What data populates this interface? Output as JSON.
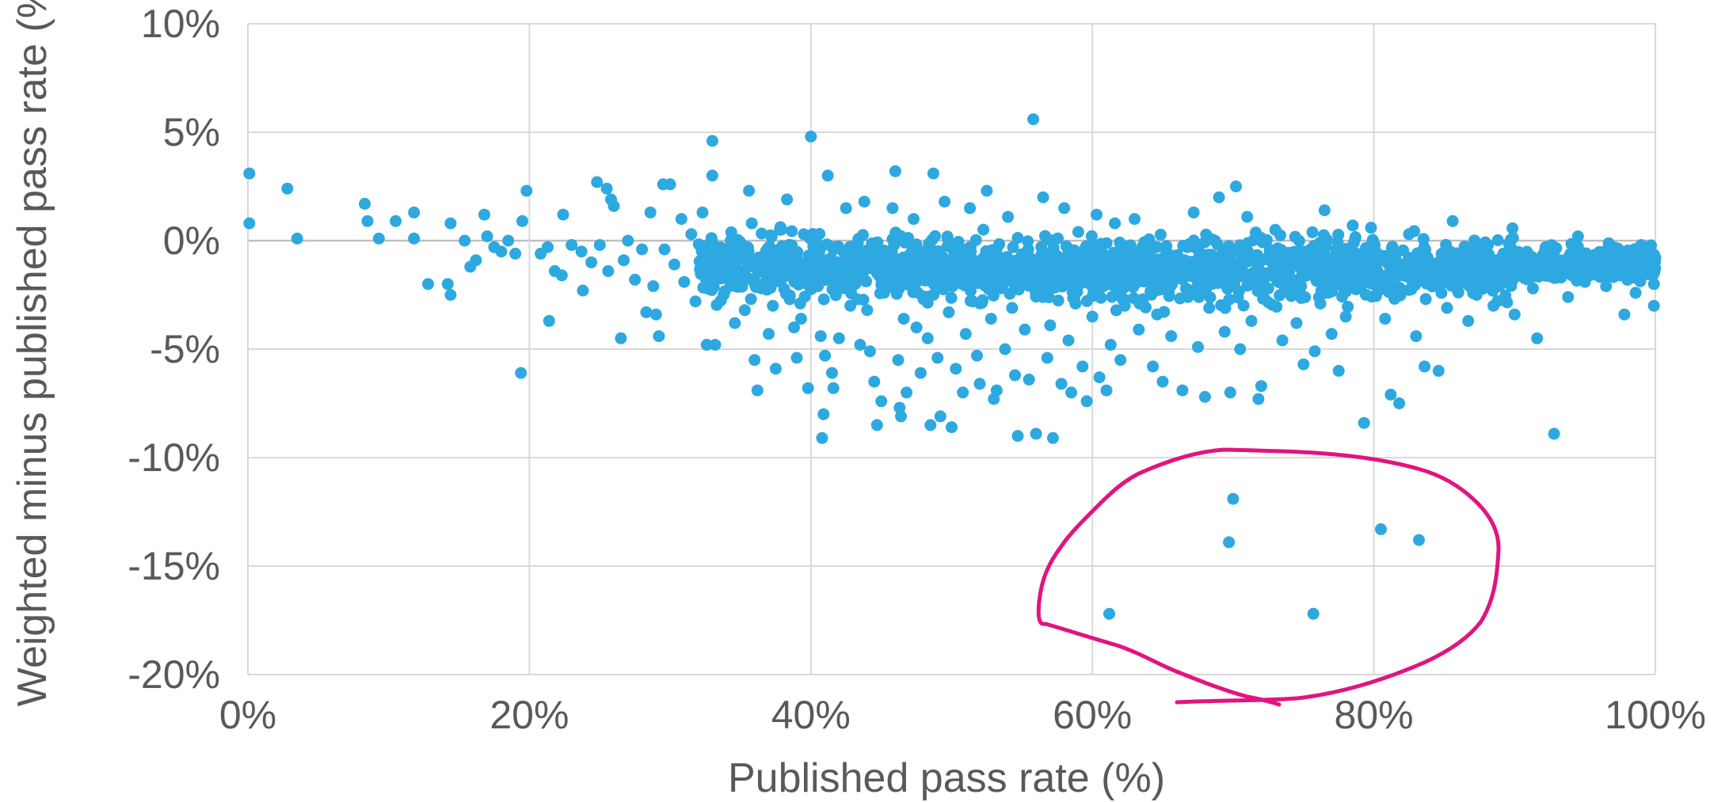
{
  "chart_data": {
    "type": "scatter",
    "xlabel": "Published pass rate (%)",
    "ylabel": "Weighted minus published pass rate (%)",
    "xlim": [
      0,
      100
    ],
    "ylim": [
      -20,
      10
    ],
    "x_ticks": [
      0,
      20,
      40,
      60,
      80,
      100
    ],
    "y_ticks": [
      10,
      5,
      0,
      -5,
      -10,
      -15,
      -20
    ],
    "x_tick_labels": [
      "0%",
      "20%",
      "40%",
      "60%",
      "80%",
      "100%"
    ],
    "y_tick_labels": [
      "10%",
      "5%",
      "0%",
      "-5%",
      "-10%",
      "-15%",
      "-20%"
    ],
    "grid": true,
    "legend": "none",
    "colors": {
      "points": "#2EA8E0",
      "annotation": "#E0157F"
    },
    "annotation": {
      "shape": "hand-drawn circle",
      "encloses": "outlier points at roughly -12% to -17%"
    },
    "series": [
      {
        "values": [
          [
            0.1,
            3.1
          ],
          [
            0.1,
            0.8
          ],
          [
            2.8,
            2.4
          ],
          [
            3.5,
            0.1
          ],
          [
            8.3,
            1.7
          ],
          [
            8.5,
            0.9
          ],
          [
            9.3,
            0.1
          ],
          [
            10.5,
            0.9
          ],
          [
            11.8,
            1.3
          ],
          [
            11.8,
            0.1
          ],
          [
            12.8,
            -2.0
          ],
          [
            14.2,
            -2.0
          ],
          [
            14.4,
            -2.5
          ],
          [
            14.4,
            0.8
          ],
          [
            15.4,
            0.0
          ],
          [
            15.8,
            -1.2
          ],
          [
            16.2,
            -0.9
          ],
          [
            16.8,
            1.2
          ],
          [
            17.0,
            0.2
          ],
          [
            17.5,
            -0.3
          ],
          [
            18.0,
            -0.5
          ],
          [
            18.5,
            0.0
          ],
          [
            19.0,
            -0.6
          ],
          [
            19.4,
            -6.1
          ],
          [
            19.5,
            0.9
          ],
          [
            19.8,
            2.3
          ],
          [
            20.8,
            -0.6
          ],
          [
            21.3,
            -0.3
          ],
          [
            21.4,
            -3.7
          ],
          [
            21.8,
            -1.4
          ],
          [
            22.3,
            -1.6
          ],
          [
            22.4,
            1.2
          ],
          [
            23.0,
            -0.2
          ],
          [
            23.7,
            -0.5
          ],
          [
            23.8,
            -2.3
          ],
          [
            24.4,
            -1.0
          ],
          [
            24.8,
            2.7
          ],
          [
            25.0,
            -0.2
          ],
          [
            25.5,
            2.4
          ],
          [
            25.6,
            -1.4
          ],
          [
            25.8,
            1.9
          ],
          [
            26.0,
            1.6
          ],
          [
            26.5,
            -4.5
          ],
          [
            26.7,
            -0.9
          ],
          [
            27.0,
            0.0
          ],
          [
            27.5,
            -1.8
          ],
          [
            28.0,
            -0.4
          ],
          [
            28.3,
            -3.3
          ],
          [
            28.6,
            1.3
          ],
          [
            28.8,
            -2.1
          ],
          [
            29.0,
            -3.4
          ],
          [
            29.2,
            -4.4
          ],
          [
            29.5,
            2.6
          ],
          [
            29.6,
            -0.4
          ],
          [
            30.0,
            2.6
          ],
          [
            30.3,
            -1.1
          ],
          [
            30.8,
            1.0
          ],
          [
            31.0,
            -1.9
          ],
          [
            31.5,
            0.3
          ],
          [
            31.8,
            -2.8
          ],
          [
            32.3,
            1.3
          ],
          [
            32.6,
            -4.8
          ],
          [
            32.8,
            -2.0
          ],
          [
            33.0,
            3.0
          ],
          [
            33.0,
            4.6
          ],
          [
            33.2,
            -4.8
          ],
          [
            33.4,
            -1.0
          ],
          [
            33.8,
            -2.5
          ],
          [
            34.3,
            0.0
          ],
          [
            34.6,
            -3.8
          ],
          [
            35.0,
            -1.4
          ],
          [
            35.3,
            -3.2
          ],
          [
            35.6,
            2.3
          ],
          [
            35.8,
            0.8
          ],
          [
            36.0,
            -5.5
          ],
          [
            36.2,
            -6.9
          ],
          [
            36.5,
            -2.2
          ],
          [
            36.6,
            -1.3
          ],
          [
            37.0,
            -4.3
          ],
          [
            37.3,
            -3.0
          ],
          [
            37.5,
            -5.9
          ],
          [
            37.8,
            0.5
          ],
          [
            38.0,
            -0.6
          ],
          [
            38.3,
            1.9
          ],
          [
            38.5,
            -2.7
          ],
          [
            38.8,
            -4.0
          ],
          [
            39.0,
            -5.4
          ],
          [
            39.3,
            -3.6
          ],
          [
            39.5,
            0.3
          ],
          [
            39.8,
            -6.8
          ],
          [
            40.0,
            4.8
          ],
          [
            40.2,
            -1.8
          ],
          [
            40.5,
            -2.1
          ],
          [
            40.7,
            -4.4
          ],
          [
            40.8,
            -9.1
          ],
          [
            40.9,
            -8.0
          ],
          [
            41.0,
            -5.3
          ],
          [
            41.2,
            3.0
          ],
          [
            41.5,
            -6.1
          ],
          [
            41.6,
            -6.8
          ],
          [
            42.0,
            -4.5
          ],
          [
            42.3,
            -0.5
          ],
          [
            42.5,
            1.5
          ],
          [
            42.8,
            -3.0
          ],
          [
            43.0,
            -1.1
          ],
          [
            43.3,
            -2.7
          ],
          [
            43.5,
            -4.8
          ],
          [
            43.8,
            1.8
          ],
          [
            44.0,
            -3.2
          ],
          [
            44.2,
            -5.1
          ],
          [
            44.5,
            -6.5
          ],
          [
            44.7,
            -8.5
          ],
          [
            45.0,
            -7.4
          ],
          [
            45.2,
            -2.4
          ],
          [
            45.5,
            -0.8
          ],
          [
            45.8,
            1.5
          ],
          [
            46.0,
            3.2
          ],
          [
            46.2,
            -5.5
          ],
          [
            46.3,
            -7.7
          ],
          [
            46.4,
            -8.1
          ],
          [
            46.6,
            -3.6
          ],
          [
            46.8,
            -7.0
          ],
          [
            47.0,
            -2.0
          ],
          [
            47.3,
            1.0
          ],
          [
            47.5,
            -4.0
          ],
          [
            47.8,
            -6.1
          ],
          [
            48.0,
            -2.7
          ],
          [
            48.3,
            -4.5
          ],
          [
            48.5,
            -8.5
          ],
          [
            48.7,
            3.1
          ],
          [
            49.0,
            -5.4
          ],
          [
            49.2,
            -8.1
          ],
          [
            49.5,
            1.8
          ],
          [
            49.8,
            -3.3
          ],
          [
            50.0,
            -8.6
          ],
          [
            50.3,
            -5.9
          ],
          [
            50.5,
            -1.5
          ],
          [
            50.8,
            -7.0
          ],
          [
            51.0,
            -4.3
          ],
          [
            51.3,
            1.5
          ],
          [
            51.5,
            -2.8
          ],
          [
            51.8,
            -5.3
          ],
          [
            52.0,
            -6.6
          ],
          [
            52.3,
            -0.9
          ],
          [
            52.5,
            2.3
          ],
          [
            52.8,
            -3.6
          ],
          [
            53.0,
            -7.3
          ],
          [
            53.2,
            -6.9
          ],
          [
            53.5,
            -2.2
          ],
          [
            53.8,
            -5.0
          ],
          [
            54.0,
            1.1
          ],
          [
            54.3,
            -3.1
          ],
          [
            54.5,
            -6.2
          ],
          [
            54.7,
            -9.0
          ],
          [
            55.0,
            -1.6
          ],
          [
            55.2,
            -4.1
          ],
          [
            55.5,
            -6.4
          ],
          [
            55.8,
            5.6
          ],
          [
            56.0,
            -8.9
          ],
          [
            56.2,
            -2.5
          ],
          [
            56.5,
            2.0
          ],
          [
            56.8,
            -5.4
          ],
          [
            57.0,
            -3.9
          ],
          [
            57.2,
            -9.1
          ],
          [
            57.5,
            -0.7
          ],
          [
            57.8,
            -6.6
          ],
          [
            58.0,
            1.5
          ],
          [
            58.3,
            -4.6
          ],
          [
            58.5,
            -7.0
          ],
          [
            58.8,
            -2.9
          ],
          [
            59.0,
            0.4
          ],
          [
            59.3,
            -5.8
          ],
          [
            59.6,
            -7.4
          ],
          [
            60.0,
            -3.5
          ],
          [
            60.3,
            1.2
          ],
          [
            60.5,
            -6.3
          ],
          [
            60.8,
            -2.1
          ],
          [
            61.0,
            -6.9
          ],
          [
            61.3,
            -4.8
          ],
          [
            61.6,
            0.8
          ],
          [
            62.0,
            -5.5
          ],
          [
            62.3,
            -3.0
          ],
          [
            62.6,
            -1.1
          ],
          [
            63.0,
            1.0
          ],
          [
            63.3,
            -4.1
          ],
          [
            63.6,
            -2.7
          ],
          [
            64.0,
            0.0
          ],
          [
            64.3,
            -5.8
          ],
          [
            64.6,
            -3.4
          ],
          [
            65.0,
            -6.5
          ],
          [
            65.3,
            -1.9
          ],
          [
            65.6,
            -4.4
          ],
          [
            66.0,
            -0.7
          ],
          [
            66.4,
            -6.9
          ],
          [
            66.8,
            -2.6
          ],
          [
            67.2,
            1.3
          ],
          [
            67.5,
            -4.9
          ],
          [
            68.0,
            -7.2
          ],
          [
            68.3,
            -3.1
          ],
          [
            68.6,
            -1.2
          ],
          [
            69.0,
            2.0
          ],
          [
            69.4,
            -4.2
          ],
          [
            69.8,
            -7.0
          ],
          [
            70.2,
            2.5
          ],
          [
            70.5,
            -5.0
          ],
          [
            71.0,
            1.1
          ],
          [
            71.3,
            -3.7
          ],
          [
            71.8,
            -7.3
          ],
          [
            72.0,
            -6.7
          ],
          [
            72.5,
            -2.2
          ],
          [
            73.0,
            0.5
          ],
          [
            73.5,
            -4.6
          ],
          [
            74.0,
            -1.4
          ],
          [
            74.5,
            -3.8
          ],
          [
            75.0,
            -5.7
          ],
          [
            75.5,
            -0.5
          ],
          [
            75.8,
            -5.1
          ],
          [
            76.2,
            -2.9
          ],
          [
            76.5,
            1.4
          ],
          [
            77.0,
            -4.3
          ],
          [
            77.5,
            -6.0
          ],
          [
            78.0,
            -3.5
          ],
          [
            78.5,
            0.7
          ],
          [
            79.0,
            -1.8
          ],
          [
            79.3,
            -8.4
          ],
          [
            79.8,
            0.6
          ],
          [
            80.3,
            -2.3
          ],
          [
            80.8,
            -3.6
          ],
          [
            81.2,
            -7.1
          ],
          [
            81.8,
            -7.5
          ],
          [
            82.5,
            0.3
          ],
          [
            83.0,
            -4.4
          ],
          [
            83.6,
            -5.8
          ],
          [
            84.2,
            -1.2
          ],
          [
            84.6,
            -6.0
          ],
          [
            85.2,
            -3.1
          ],
          [
            85.6,
            0.9
          ],
          [
            86.2,
            -1.9
          ],
          [
            86.7,
            -3.7
          ],
          [
            87.3,
            -2.5
          ],
          [
            88.0,
            -1.4
          ],
          [
            88.5,
            -3.0
          ],
          [
            89.2,
            -0.6
          ],
          [
            90.0,
            -3.4
          ],
          [
            90.6,
            -1.1
          ],
          [
            91.3,
            -2.2
          ],
          [
            91.6,
            -4.5
          ],
          [
            92.2,
            -0.3
          ],
          [
            92.8,
            -8.9
          ],
          [
            93.3,
            -1.7
          ],
          [
            93.8,
            -2.6
          ],
          [
            94.5,
            0.2
          ],
          [
            95.0,
            -1.9
          ],
          [
            95.5,
            -0.8
          ],
          [
            96.0,
            -1.3
          ],
          [
            96.5,
            -2.1
          ],
          [
            97.0,
            -0.4
          ],
          [
            97.5,
            -1.6
          ],
          [
            97.8,
            -3.4
          ],
          [
            98.2,
            -0.9
          ],
          [
            98.6,
            -2.4
          ],
          [
            99.0,
            -0.2
          ],
          [
            99.3,
            -1.5
          ],
          [
            99.6,
            -0.7
          ],
          [
            99.9,
            -2.0
          ],
          [
            99.9,
            -1.1
          ],
          [
            99.9,
            -3.0
          ],
          [
            70.0,
            -11.9
          ],
          [
            69.7,
            -13.9
          ],
          [
            80.5,
            -13.3
          ],
          [
            83.2,
            -13.8
          ],
          [
            61.2,
            -17.2
          ],
          [
            75.7,
            -17.2
          ]
        ]
      }
    ]
  }
}
